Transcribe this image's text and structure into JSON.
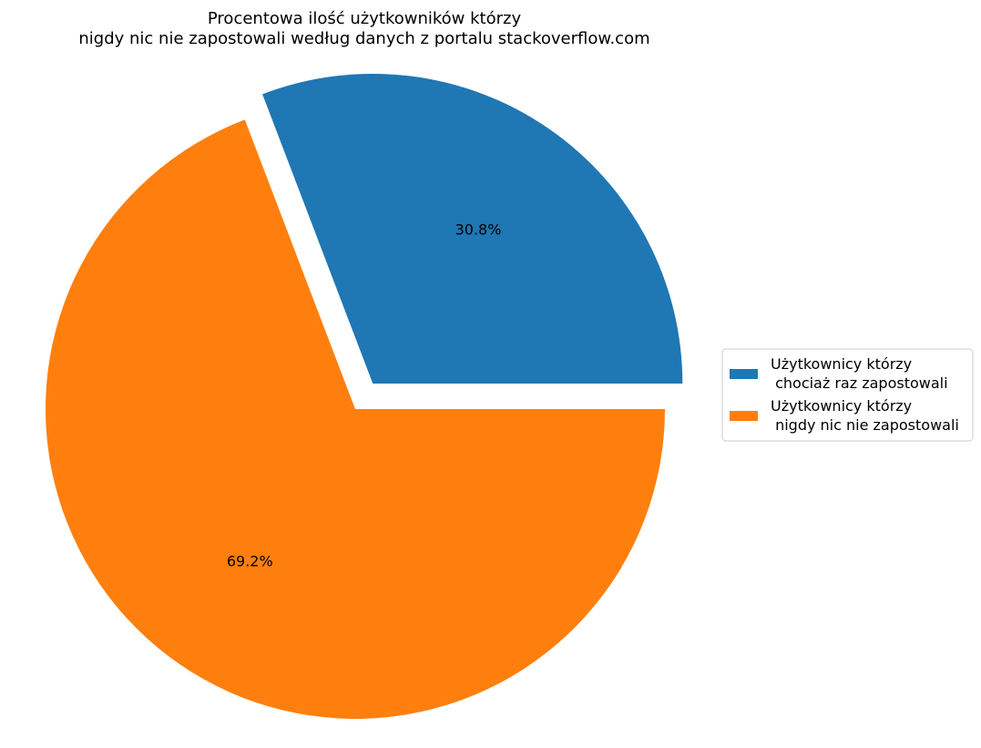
{
  "chart_data": {
    "type": "pie",
    "title": "Procentowa ilość użytkowników którzy\nnigdy nic nie zapostowali według danych z portalu stackoverflow.com",
    "slices": [
      {
        "label": "Użytkownicy którzy\n chociaż raz zapostowali",
        "value": 30.8,
        "pct_label": "30.8%",
        "color": "#1f77b4",
        "exploded": true
      },
      {
        "label": "Użytkownicy którzy\n nigdy nic nie zapostowali",
        "value": 69.2,
        "pct_label": "69.2%",
        "color": "#ff7f0e",
        "exploded": false
      }
    ],
    "start_angle_deg": 0,
    "direction": "counterclockwise",
    "legend_position": "right",
    "grid": false
  }
}
